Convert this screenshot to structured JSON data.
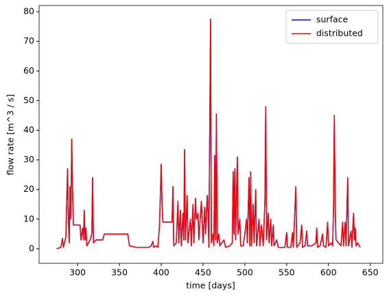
{
  "chart_data": {
    "type": "line",
    "x_label": "time [days]",
    "y_label": "flow rate [m^3 / s]",
    "x": [
      275,
      280,
      282,
      283,
      286,
      288,
      289,
      290,
      291,
      292,
      293,
      294,
      295,
      300,
      303,
      304,
      306,
      307,
      308,
      309,
      310,
      311,
      313,
      315,
      317,
      318,
      319,
      322,
      330,
      332,
      360,
      362,
      370,
      385,
      388,
      390,
      391,
      394,
      396,
      398,
      400,
      401,
      402,
      413,
      414,
      415,
      418,
      420,
      421,
      423,
      424,
      426,
      427,
      428,
      429,
      431,
      432,
      435,
      436,
      438,
      439,
      441,
      442,
      444,
      445,
      448,
      449,
      450,
      452,
      453,
      455,
      456,
      457,
      459,
      460,
      462,
      463,
      464,
      465,
      466,
      467,
      469,
      470,
      475,
      477,
      482,
      485,
      486,
      487,
      488,
      489,
      491,
      492,
      494,
      495,
      498,
      500,
      502,
      503,
      505,
      506,
      507,
      508,
      510,
      511,
      513,
      514,
      517,
      518,
      520,
      522,
      524,
      525,
      526,
      528,
      529,
      531,
      532,
      534,
      535,
      538,
      540,
      548,
      550,
      551,
      555,
      557,
      558,
      561,
      562,
      566,
      568,
      569,
      572,
      574,
      575,
      580,
      585,
      586,
      587,
      590,
      593,
      594,
      597,
      599,
      600,
      603,
      605,
      606,
      607,
      608,
      609,
      612,
      615,
      617,
      618,
      620,
      621,
      623,
      624,
      627,
      628,
      630,
      631,
      632,
      633,
      635,
      638
    ],
    "series": [
      {
        "name": "surface",
        "color": "#0000ff",
        "values": [
          0,
          0.5,
          3.5,
          0.5,
          4,
          27,
          10,
          2,
          21,
          10,
          37,
          20,
          8,
          8,
          8,
          3,
          7,
          3,
          13,
          3,
          7,
          1,
          2,
          3,
          5,
          24,
          2,
          3,
          3,
          5,
          5,
          1,
          0.5,
          0.5,
          1,
          2.5,
          0.5,
          1,
          0.5,
          8,
          28.5,
          15,
          9,
          9,
          21,
          1,
          2,
          16,
          2,
          13,
          1,
          12,
          3,
          33.5,
          3,
          18,
          2,
          10,
          1,
          15,
          2,
          17,
          10,
          12,
          3,
          16,
          10,
          2,
          14,
          5,
          18,
          12,
          0.5,
          77.5,
          2,
          5,
          1,
          31.5,
          3,
          45.5,
          2,
          5,
          1,
          3,
          0.5,
          1,
          2,
          26,
          5,
          27,
          3,
          31,
          5,
          10,
          1,
          1,
          5,
          10,
          2,
          24,
          1,
          26,
          1,
          15,
          2,
          20,
          1,
          10,
          1,
          8,
          1,
          16,
          48,
          3,
          12,
          2,
          10,
          1,
          8,
          1,
          3,
          0.5,
          0.5,
          5.5,
          0.5,
          0.5,
          5.5,
          0.5,
          21,
          0.5,
          2,
          8,
          0.5,
          1,
          6,
          1,
          1,
          2,
          7,
          0.5,
          1,
          5,
          1,
          0.5,
          9,
          1,
          2,
          1,
          13,
          45,
          15,
          3,
          2,
          1,
          9,
          1,
          9,
          1,
          24,
          1,
          6,
          0.5,
          12,
          3,
          7,
          1,
          2,
          0.5
        ]
      },
      {
        "name": "distributed",
        "color": "#ff0000",
        "values": [
          0,
          0.5,
          3.5,
          0.5,
          4,
          27,
          10,
          2,
          21,
          10,
          37,
          20,
          8,
          8,
          8,
          3,
          7,
          3,
          13,
          3,
          7,
          1,
          2,
          3,
          5,
          24,
          2,
          3,
          3,
          5,
          5,
          1,
          0.5,
          0.5,
          1,
          2.5,
          0.5,
          1,
          0.5,
          8,
          28.5,
          15,
          9,
          9,
          21,
          1,
          2,
          16,
          2,
          13,
          1,
          12,
          3,
          33.5,
          3,
          18,
          2,
          10,
          1,
          15,
          2,
          17,
          10,
          12,
          3,
          16,
          10,
          2,
          14,
          5,
          18,
          12,
          0.5,
          77.5,
          2,
          5,
          1,
          31.5,
          3,
          45.5,
          2,
          5,
          1,
          3,
          0.5,
          1,
          2,
          26,
          5,
          27,
          3,
          31,
          5,
          10,
          1,
          1,
          5,
          10,
          2,
          24,
          1,
          26,
          1,
          15,
          2,
          20,
          1,
          10,
          1,
          8,
          1,
          16,
          48,
          3,
          12,
          2,
          10,
          1,
          8,
          1,
          3,
          0.5,
          0.5,
          5.5,
          0.5,
          0.5,
          5.5,
          0.5,
          21,
          0.5,
          2,
          8,
          0.5,
          1,
          6,
          1,
          1,
          2,
          7,
          0.5,
          1,
          5,
          1,
          0.5,
          9,
          1,
          2,
          1,
          13,
          45,
          15,
          3,
          2,
          1,
          9,
          1,
          9,
          1,
          24,
          1,
          6,
          0.5,
          12,
          3,
          7,
          1,
          2,
          0.5
        ]
      }
    ],
    "xlim": [
      254,
      665
    ],
    "ylim": [
      -4.9,
      82.1
    ],
    "xticks": [
      300,
      350,
      400,
      450,
      500,
      550,
      600,
      650
    ],
    "yticks": [
      0,
      10,
      20,
      30,
      40,
      50,
      60,
      70,
      80
    ],
    "legend": "upper right"
  }
}
